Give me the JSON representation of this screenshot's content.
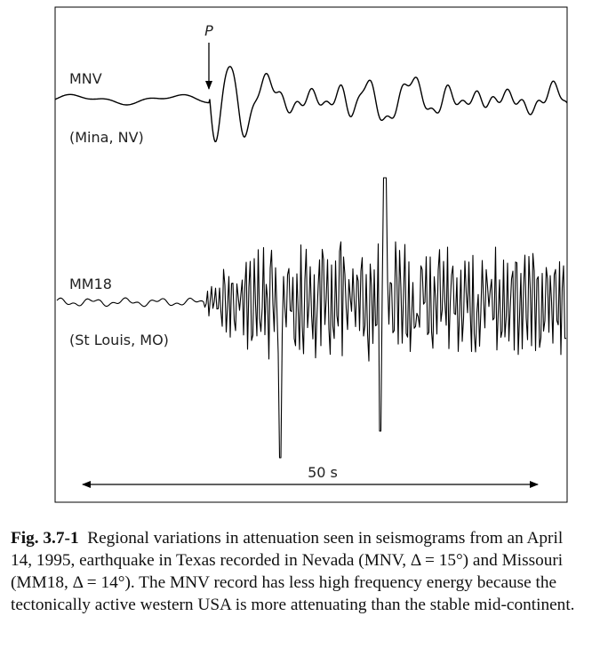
{
  "figure": {
    "p_label": "P",
    "traces": [
      {
        "station": "MNV",
        "location": "(Mina, NV)"
      },
      {
        "station": "MM18",
        "location": "(St Louis, MO)"
      }
    ],
    "scale_label": "50 s"
  },
  "caption": {
    "label": "Fig. 3.7-1",
    "text": "Regional variations in attenuation seen in seismograms from an April 14, 1995, earthquake in Texas recorded in Nevada (MNV, Δ = 15°) and Missouri (MM18, Δ = 14°). The MNV record has less high frequency energy because the tectonically active western USA is more attenuating than the stable mid-continent."
  }
}
